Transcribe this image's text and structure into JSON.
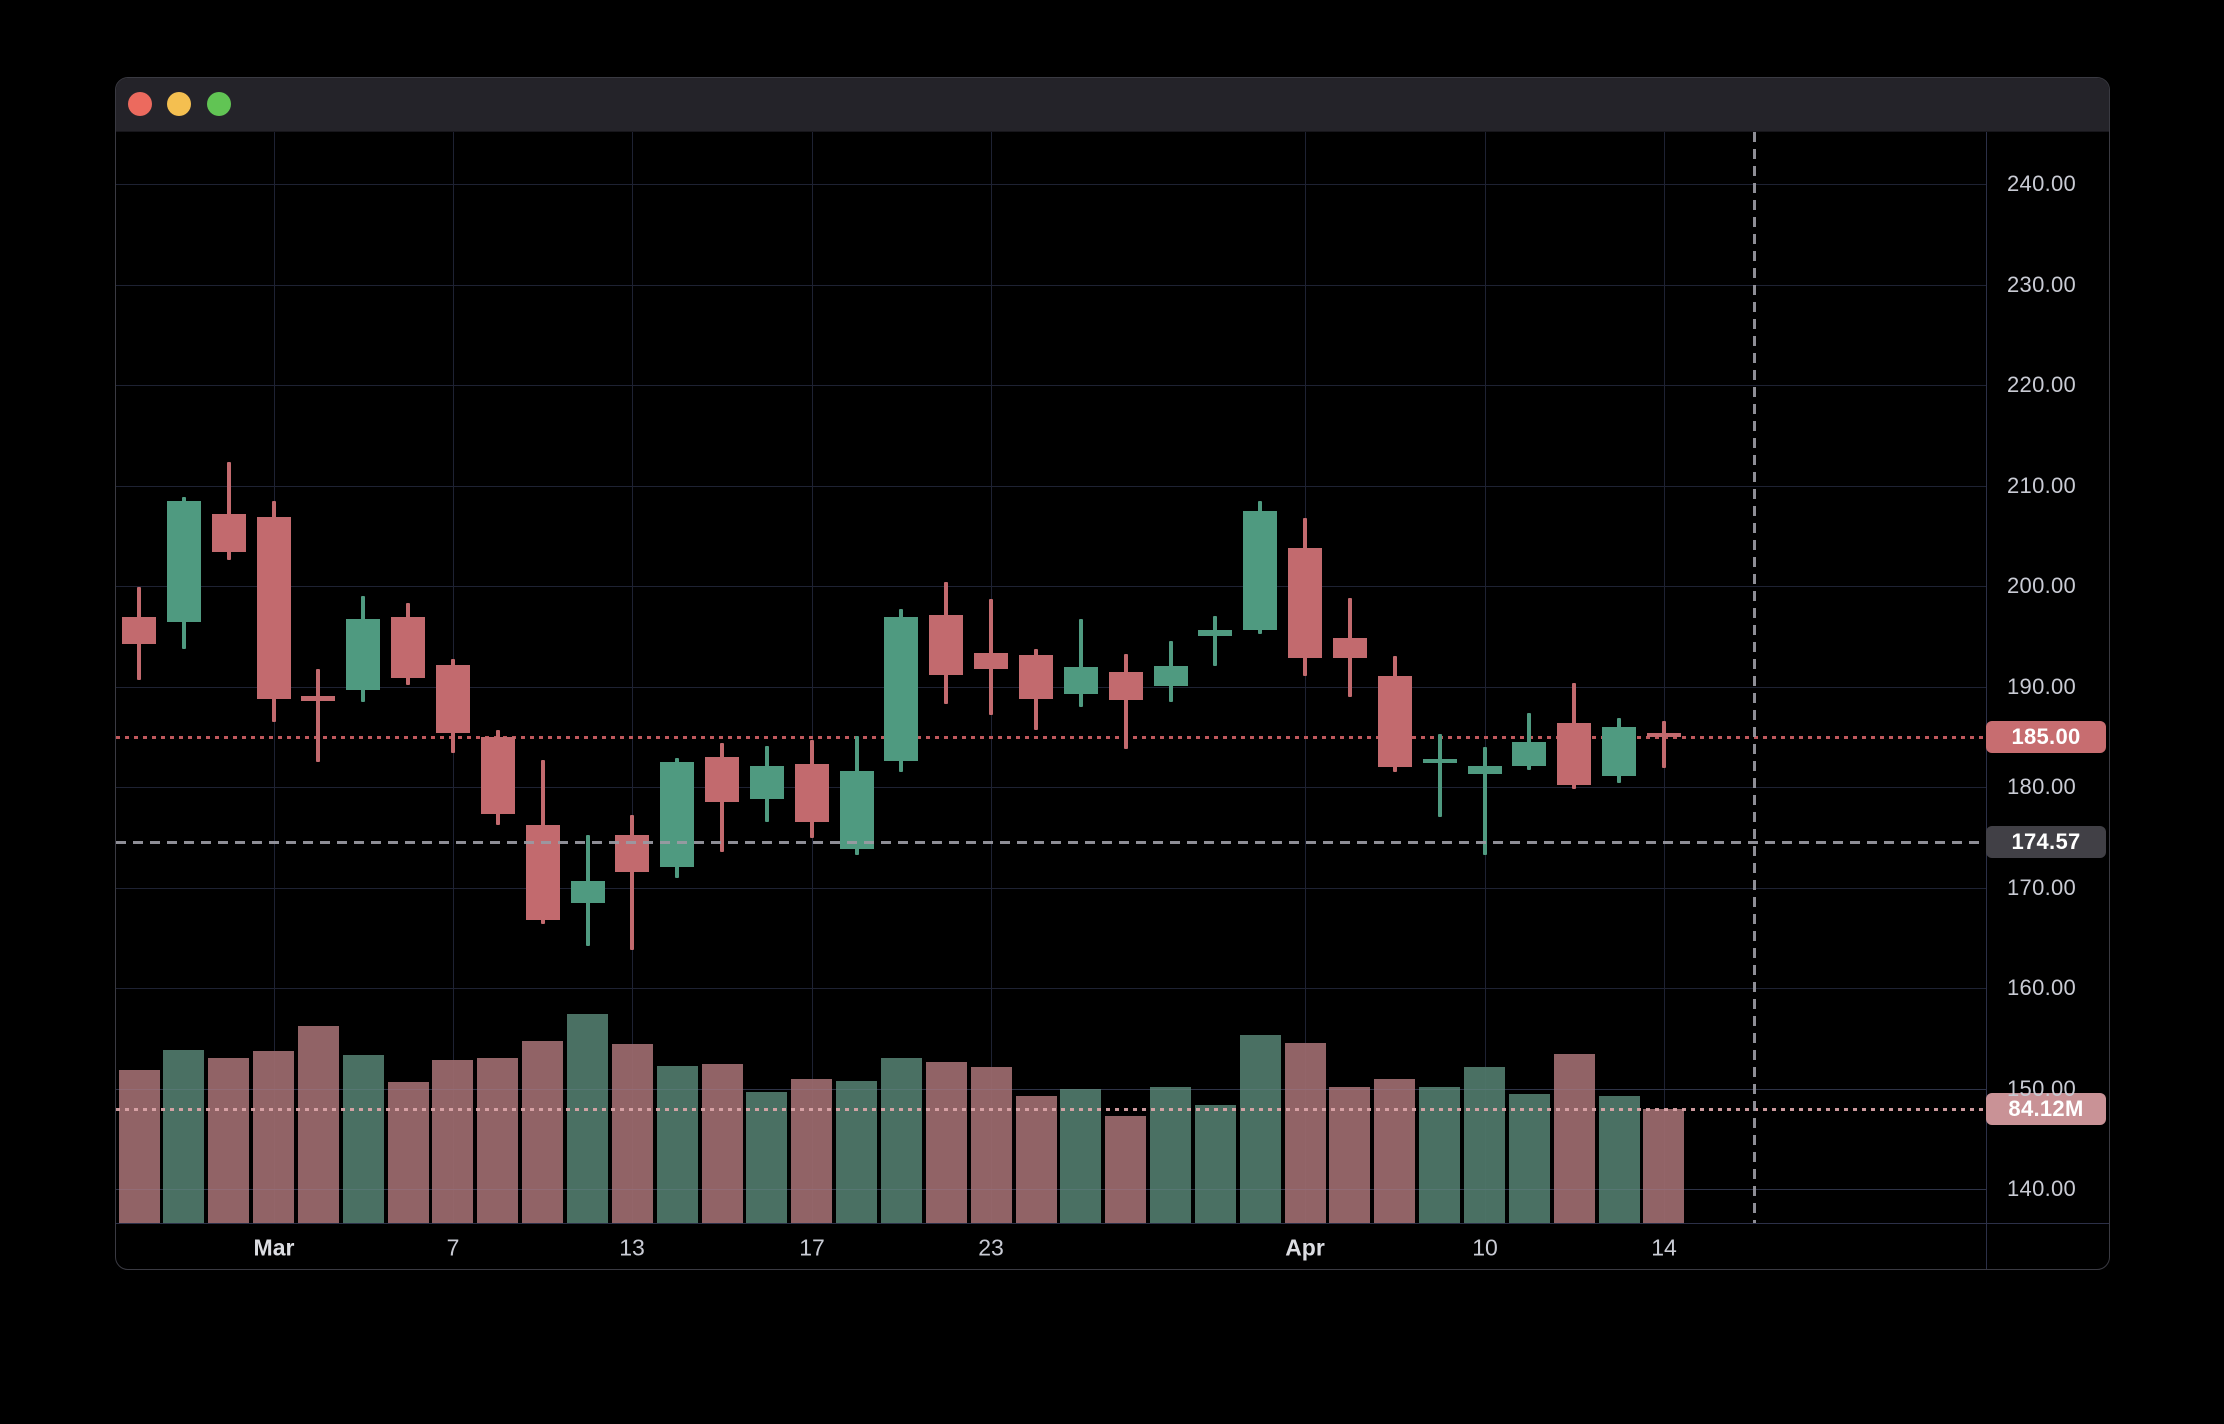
{
  "window": {
    "kind": "macos-chart-window",
    "traffic_lights": [
      {
        "name": "close",
        "color": "#ec6a5e"
      },
      {
        "name": "minimize",
        "color": "#f4bf50"
      },
      {
        "name": "zoom",
        "color": "#61c454"
      }
    ]
  },
  "chart_data": {
    "type": "candlestick_with_volume",
    "legend_position": "none",
    "grid": true,
    "price_axis": {
      "tick_labels": [
        "240.00",
        "230.00",
        "220.00",
        "210.00",
        "200.00",
        "190.00",
        "180.00",
        "170.00",
        "160.00",
        "150.00",
        "140.00"
      ],
      "tick_values": [
        240,
        230,
        220,
        210,
        200,
        190,
        180,
        170,
        160,
        150,
        140
      ],
      "visible_range": [
        134.7,
        245.3
      ]
    },
    "time_axis": {
      "tick_labels": [
        "Mar",
        "7",
        "13",
        "17",
        "23",
        "Apr",
        "10",
        "14"
      ],
      "tick_candle_index": [
        3,
        7,
        11,
        15,
        19,
        26,
        30,
        34
      ],
      "month_ticks": [
        "Mar",
        "Apr"
      ]
    },
    "candles": [
      {
        "o": 196.9,
        "h": 199.9,
        "l": 190.6,
        "c": 194.2,
        "v": 113
      },
      {
        "o": 196.4,
        "h": 208.9,
        "l": 193.7,
        "c": 208.5,
        "v": 128
      },
      {
        "o": 207.2,
        "h": 212.3,
        "l": 202.6,
        "c": 203.4,
        "v": 122
      },
      {
        "o": 206.9,
        "h": 208.5,
        "l": 186.5,
        "c": 188.8,
        "v": 127
      },
      {
        "o": 189.1,
        "h": 191.7,
        "l": 182.5,
        "c": 188.6,
        "v": 145
      },
      {
        "o": 189.7,
        "h": 199.0,
        "l": 188.5,
        "c": 196.7,
        "v": 124
      },
      {
        "o": 196.9,
        "h": 198.3,
        "l": 190.1,
        "c": 190.8,
        "v": 104
      },
      {
        "o": 192.1,
        "h": 192.7,
        "l": 183.4,
        "c": 185.4,
        "v": 120
      },
      {
        "o": 185.0,
        "h": 185.7,
        "l": 176.2,
        "c": 177.3,
        "v": 122
      },
      {
        "o": 176.2,
        "h": 182.7,
        "l": 166.4,
        "c": 166.8,
        "v": 134
      },
      {
        "o": 168.5,
        "h": 175.2,
        "l": 164.2,
        "c": 170.6,
        "v": 154
      },
      {
        "o": 175.2,
        "h": 177.2,
        "l": 163.8,
        "c": 171.5,
        "v": 132
      },
      {
        "o": 172.0,
        "h": 182.9,
        "l": 170.9,
        "c": 182.5,
        "v": 116
      },
      {
        "o": 183.0,
        "h": 184.4,
        "l": 173.5,
        "c": 178.5,
        "v": 117
      },
      {
        "o": 178.8,
        "h": 184.1,
        "l": 176.5,
        "c": 182.1,
        "v": 97
      },
      {
        "o": 182.3,
        "h": 184.7,
        "l": 174.9,
        "c": 176.5,
        "v": 106
      },
      {
        "o": 173.8,
        "h": 185.1,
        "l": 173.2,
        "c": 181.6,
        "v": 105
      },
      {
        "o": 182.6,
        "h": 197.7,
        "l": 181.5,
        "c": 196.9,
        "v": 122
      },
      {
        "o": 197.1,
        "h": 200.4,
        "l": 188.3,
        "c": 191.1,
        "v": 119
      },
      {
        "o": 193.3,
        "h": 198.7,
        "l": 187.2,
        "c": 191.7,
        "v": 115
      },
      {
        "o": 193.1,
        "h": 193.7,
        "l": 185.7,
        "c": 188.8,
        "v": 94
      },
      {
        "o": 189.3,
        "h": 196.7,
        "l": 188.0,
        "c": 191.9,
        "v": 99
      },
      {
        "o": 191.4,
        "h": 193.2,
        "l": 183.8,
        "c": 188.7,
        "v": 79
      },
      {
        "o": 190.0,
        "h": 194.5,
        "l": 188.5,
        "c": 192.0,
        "v": 100
      },
      {
        "o": 195.0,
        "h": 197.0,
        "l": 192.0,
        "c": 195.6,
        "v": 87
      },
      {
        "o": 195.6,
        "h": 208.5,
        "l": 195.2,
        "c": 207.5,
        "v": 139
      },
      {
        "o": 203.8,
        "h": 206.8,
        "l": 191.0,
        "c": 192.8,
        "v": 133
      },
      {
        "o": 194.8,
        "h": 198.8,
        "l": 189.0,
        "c": 192.8,
        "v": 100
      },
      {
        "o": 191.0,
        "h": 193.0,
        "l": 181.5,
        "c": 182.0,
        "v": 106
      },
      {
        "o": 182.4,
        "h": 185.3,
        "l": 177.0,
        "c": 182.8,
        "v": 100
      },
      {
        "o": 181.3,
        "h": 184.0,
        "l": 173.2,
        "c": 182.1,
        "v": 115
      },
      {
        "o": 182.1,
        "h": 187.4,
        "l": 181.7,
        "c": 184.5,
        "v": 95
      },
      {
        "o": 186.4,
        "h": 190.3,
        "l": 179.8,
        "c": 180.2,
        "v": 125
      },
      {
        "o": 181.1,
        "h": 186.9,
        "l": 180.4,
        "c": 186.0,
        "v": 94
      },
      {
        "o": 185.4,
        "h": 186.6,
        "l": 181.9,
        "c": 185.0,
        "v": 84.12
      }
    ],
    "volume_unit": "M",
    "last_price": {
      "label": "185.00",
      "value": 185.0
    },
    "crosshair": {
      "price_label": "174.57",
      "value": 174.57
    },
    "last_volume": {
      "label": "84.12M",
      "value": 84.12
    }
  },
  "colors": {
    "background": "#000000",
    "titlebar": "#242329",
    "grid": "#1e2233",
    "candle_up": "#4f9a80",
    "candle_down": "#c26a6e",
    "volume_up": "#50796b",
    "volume_down": "#9c6a6e",
    "last_price_badge": "#c76d70",
    "crosshair_badge": "#414046",
    "volume_badge": "#c99296",
    "last_price_line": "#bf585c",
    "crosshair_line": "#9a9aa3",
    "axis_text": "#c9cbd4"
  }
}
